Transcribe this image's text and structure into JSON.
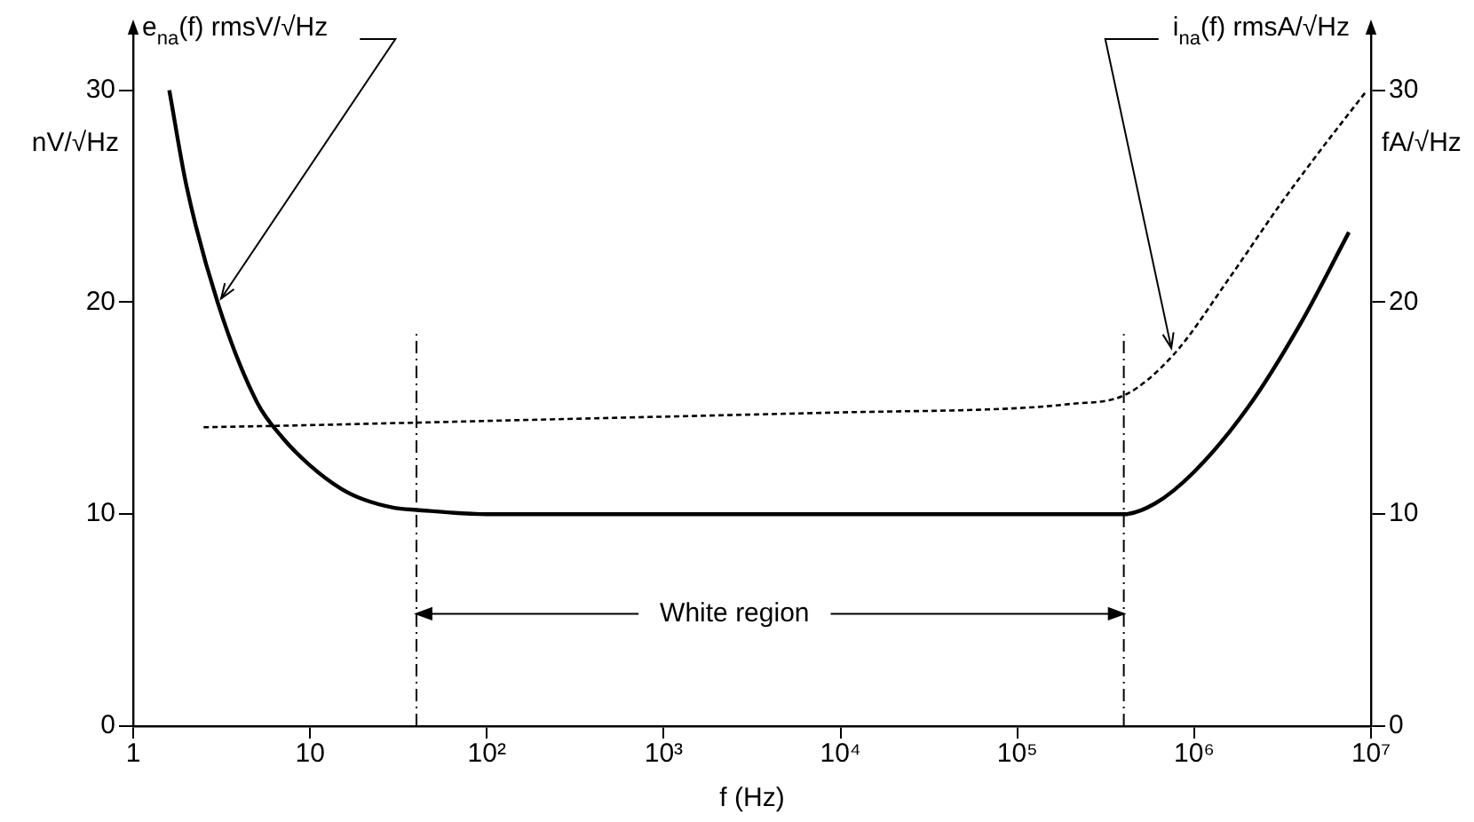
{
  "chart_data": {
    "type": "line",
    "xlabel": "f (Hz)",
    "ylabel": "nV/√Hz",
    "y2label": "fA/√Hz",
    "log": "x",
    "grid": false,
    "legend": false,
    "marker": "none",
    "xlim": [
      1,
      10000000
    ],
    "xticks": [
      1,
      10,
      {
        "value": 100,
        "label": "10²"
      },
      {
        "value": 1000,
        "label": "10³"
      },
      {
        "value": 10000,
        "label": "10⁴"
      },
      {
        "value": 100000,
        "label": "10⁵"
      },
      {
        "value": 1000000,
        "label": "10⁶"
      },
      {
        "value": 10000000,
        "label": "10⁷"
      }
    ],
    "ylim": [
      0,
      33
    ],
    "yticks": [
      0,
      10,
      20,
      30
    ],
    "y2lim": [
      0,
      33
    ],
    "y2ticks": [
      0,
      10,
      20,
      30
    ],
    "series": [
      {
        "color": "#000000",
        "line_style": "solid",
        "x": [
          1.6,
          2,
          3,
          5,
          7,
          10,
          15,
          20,
          30,
          40,
          100,
          1000,
          10000,
          100000,
          400000,
          600000,
          1000000,
          2000000,
          4000000,
          7500000
        ],
        "values": [
          30,
          25.5,
          20,
          15.3,
          13.6,
          12.3,
          11.2,
          10.7,
          10.3,
          10.2,
          10,
          10,
          10,
          10,
          10,
          10.5,
          12,
          15,
          19,
          23.3
        ]
      },
      {
        "color": "#000000",
        "line_style": "dashed",
        "axis": "y2",
        "x": [
          2.5,
          10,
          100,
          1000,
          10000,
          100000,
          200000,
          400000,
          760000,
          1600000,
          3000000,
          5000000,
          9300000
        ],
        "values": [
          14.1,
          14.2,
          14.4,
          14.6,
          14.8,
          15,
          15.2,
          15.6,
          17.5,
          21.2,
          24.5,
          27,
          29.9
        ]
      }
    ],
    "ref_lines": [
      {
        "axis": "x",
        "value": 40,
        "line_style": "dashed"
      },
      {
        "axis": "x",
        "value": 400000,
        "line_style": "dashed"
      }
    ],
    "annotations": [
      {
        "text": "e$_{na}$(f) rmsV/√Hz",
        "x": 3,
        "y": 20
      },
      {
        "text": "i$_{na}$(f) rmsA/√Hz",
        "x": 760000,
        "y": 17.5
      },
      {
        "text": "White region",
        "x": 40,
        "y": 5.3
      }
    ]
  }
}
